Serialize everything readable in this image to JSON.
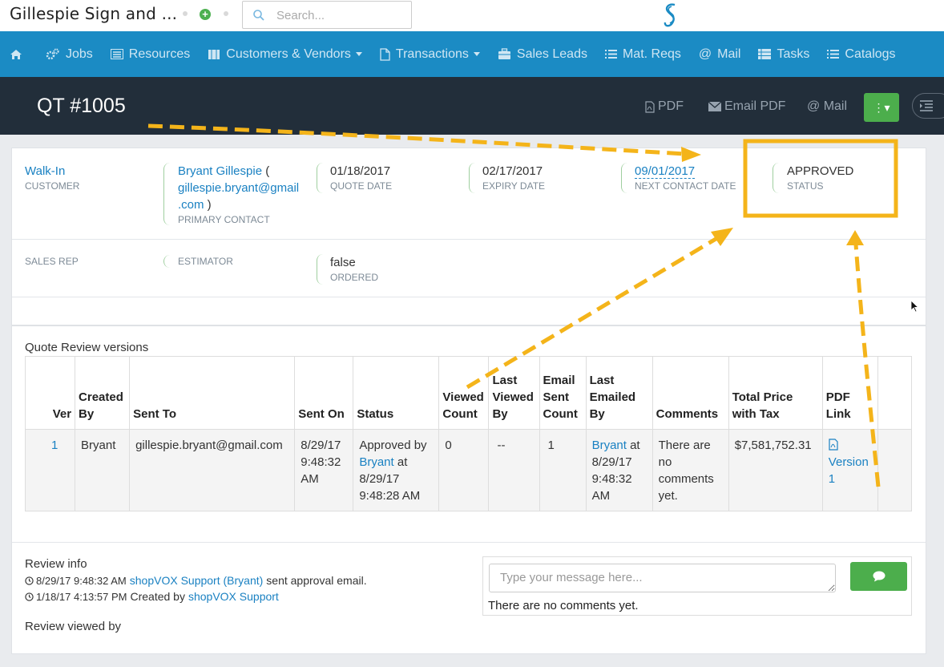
{
  "header": {
    "company_name": "Gillespie Sign and ...",
    "search_placeholder": "Search..."
  },
  "nav": {
    "items": [
      {
        "label": "Jobs"
      },
      {
        "label": "Resources"
      },
      {
        "label": "Customers & Vendors"
      },
      {
        "label": "Transactions"
      },
      {
        "label": "Sales Leads"
      },
      {
        "label": "Mat. Reqs"
      },
      {
        "label": "Mail"
      },
      {
        "label": "Tasks"
      },
      {
        "label": "Catalogs"
      }
    ]
  },
  "titlebar": {
    "title": "QT #1005",
    "pdf_label": "PDF",
    "email_pdf_label": "Email PDF",
    "mail_label": "@ Mail"
  },
  "quote": {
    "customer": {
      "value": "Walk-In",
      "label": "CUSTOMER"
    },
    "primary_contact": {
      "name": "Bryant Gillespie",
      "open_paren": " (",
      "email_line1": "gillespie.bryant@gmail",
      "email_line2": ".com",
      "close_paren": " )",
      "label": "PRIMARY CONTACT"
    },
    "quote_date": {
      "value": "01/18/2017",
      "label": "QUOTE DATE"
    },
    "expiry_date": {
      "value": "02/17/2017",
      "label": "EXPIRY DATE"
    },
    "next_contact_date": {
      "value": "09/01/2017",
      "label": "NEXT CONTACT DATE"
    },
    "status": {
      "value": "APPROVED",
      "label": "STATUS"
    },
    "sales_rep": {
      "label": "SALES REP"
    },
    "estimator": {
      "label": "ESTIMATOR"
    },
    "ordered": {
      "value": "false",
      "label": "ORDERED"
    }
  },
  "review_versions": {
    "title": "Quote Review versions",
    "columns": [
      "Ver",
      "Created By",
      "Sent To",
      "Sent On",
      "Status",
      "Viewed Count",
      "Last Viewed By",
      "Email Sent Count",
      "Last Emailed By",
      "Comments",
      "Total Price with Tax",
      "PDF Link"
    ],
    "rows": [
      {
        "ver": "1",
        "created_by": "Bryant",
        "sent_to": "gillespie.bryant@gmail.com",
        "sent_on": "8/29/17 9:48:32 AM",
        "status_prefix": "Approved by",
        "status_user": "Bryant",
        "status_suffix": "at 8/29/17 9:48:28 AM",
        "viewed_count": "0",
        "last_viewed_by": "--",
        "email_sent_count": "1",
        "last_emailed_user": "Bryant",
        "last_emailed_suffix": "at 8/29/17 9:48:32 AM",
        "comments": "There are no comments yet.",
        "total_price": "$7,581,752.31",
        "pdf_link": "Version 1"
      }
    ]
  },
  "review_info": {
    "title": "Review info",
    "entries": [
      {
        "time": "8/29/17 9:48:32 AM",
        "actor": "shopVOX Support (Bryant)",
        "text": "sent approval email."
      },
      {
        "time": "1/18/17 4:13:57 PM",
        "text": "Created by",
        "actor": "shopVOX Support"
      }
    ],
    "viewed_by_title": "Review viewed by"
  },
  "comments": {
    "placeholder": "Type your message here...",
    "empty_text": "There are no comments yet."
  },
  "colors": {
    "nav_bg": "#1b8bc4",
    "titlebar_bg": "#222e3a",
    "link": "#1a81c2",
    "success": "#4cae4c",
    "annotation": "#f4b41a"
  }
}
